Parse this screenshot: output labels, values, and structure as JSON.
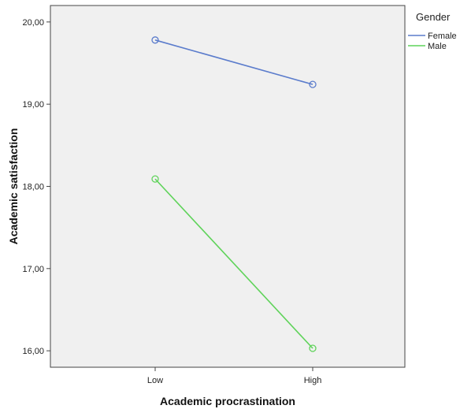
{
  "chart_data": {
    "type": "line",
    "title": "",
    "xlabel": "Academic procrastination",
    "ylabel": "Academic satisfaction",
    "categories": [
      "Low",
      "High"
    ],
    "ylim": [
      15.8,
      20.2
    ],
    "yticks": [
      16,
      17,
      18,
      19,
      20
    ],
    "ytick_labels": [
      "16,00",
      "17,00",
      "18,00",
      "19,00",
      "20,00"
    ],
    "grid": false,
    "background": "#f0f0f0",
    "legend": {
      "title": "Gender",
      "position": "top-right-outside"
    },
    "series": [
      {
        "name": "Female",
        "values": [
          19.78,
          19.24
        ],
        "color": "#5b7ccc",
        "marker": "circle-open"
      },
      {
        "name": "Male",
        "values": [
          18.09,
          16.03
        ],
        "color": "#5fd35a",
        "marker": "circle-open"
      }
    ]
  }
}
